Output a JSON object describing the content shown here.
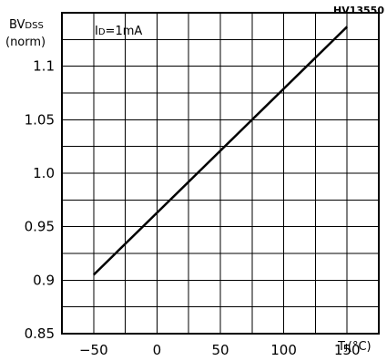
{
  "header": {
    "code": "HV13550"
  },
  "chart_data": {
    "type": "line",
    "title": "",
    "ylabel": "BVDSS (norm)",
    "xlabel": "TJ(°C)",
    "annotation": "ID=1mA",
    "xlim": [
      -75,
      175
    ],
    "ylim": [
      0.85,
      1.15
    ],
    "x_ticks": [
      -50,
      0,
      50,
      100,
      150
    ],
    "y_ticks": [
      0.85,
      0.9,
      0.95,
      1.0,
      1.05,
      1.1
    ],
    "x_tick_labels": [
      "−50",
      "0",
      "50",
      "100",
      "150"
    ],
    "y_tick_labels": [
      "0.85",
      "0.9",
      "0.95",
      "1.0",
      "1.05",
      "1.1"
    ],
    "grid": true,
    "series": [
      {
        "x": [
          -50,
          150
        ],
        "y": [
          0.905,
          1.137
        ]
      }
    ],
    "colors": {
      "line": "#000000",
      "grid": "#000000",
      "background": "#ffffff"
    }
  }
}
